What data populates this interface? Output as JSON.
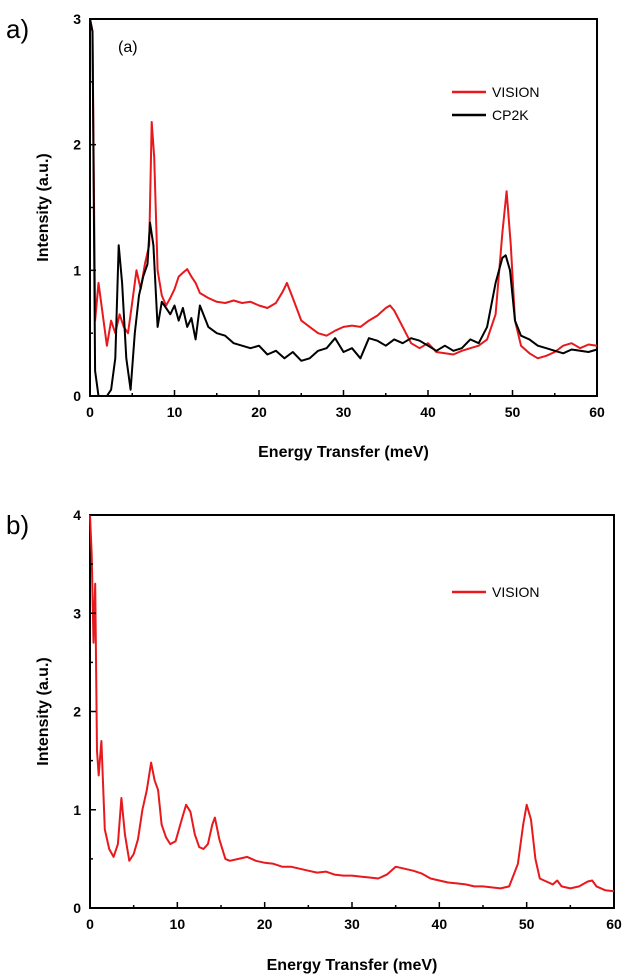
{
  "panels": [
    {
      "letter": "a)",
      "annotation": "(a)"
    },
    {
      "letter": "b)",
      "annotation": ""
    }
  ],
  "chart_data": [
    {
      "type": "line",
      "xlabel": "Energy Transfer (meV)",
      "ylabel": "Intensity (a.u.)",
      "xlim": [
        0,
        60
      ],
      "ylim": [
        0,
        3
      ],
      "xticks": [
        0,
        10,
        20,
        30,
        40,
        50,
        60
      ],
      "yticks": [
        0,
        1,
        2,
        3
      ],
      "grid": false,
      "legend_position": "top-right",
      "series": [
        {
          "name": "VISION",
          "color": "#e8191d",
          "x": [
            0,
            0.3,
            0.6,
            1.0,
            1.5,
            2,
            2.5,
            3,
            3.5,
            4,
            4.5,
            5,
            5.5,
            6,
            6.5,
            7,
            7.3,
            7.6,
            8,
            8.5,
            9,
            9.5,
            10,
            10.5,
            11,
            11.5,
            12,
            12.5,
            13,
            14,
            15,
            16,
            17,
            18,
            19,
            20,
            21,
            22,
            22.8,
            23.3,
            24,
            25,
            26,
            27,
            28,
            29,
            30,
            31,
            32,
            33,
            34,
            35,
            35.5,
            36,
            37,
            38,
            39,
            40,
            41,
            42,
            43,
            44,
            45,
            46,
            47,
            48,
            48.8,
            49.3,
            49.8,
            50.3,
            51,
            52,
            53,
            54,
            55,
            56,
            57,
            58,
            59,
            60
          ],
          "y": [
            3.0,
            2.9,
            0.6,
            0.9,
            0.65,
            0.4,
            0.6,
            0.5,
            0.65,
            0.55,
            0.5,
            0.75,
            1.0,
            0.85,
            1.05,
            1.2,
            2.18,
            1.9,
            1.0,
            0.8,
            0.72,
            0.78,
            0.85,
            0.95,
            0.98,
            1.01,
            0.95,
            0.9,
            0.82,
            0.78,
            0.75,
            0.74,
            0.76,
            0.74,
            0.75,
            0.72,
            0.7,
            0.74,
            0.83,
            0.9,
            0.78,
            0.6,
            0.55,
            0.5,
            0.48,
            0.52,
            0.55,
            0.56,
            0.55,
            0.6,
            0.64,
            0.7,
            0.72,
            0.68,
            0.55,
            0.42,
            0.38,
            0.42,
            0.35,
            0.34,
            0.33,
            0.36,
            0.38,
            0.4,
            0.45,
            0.65,
            1.3,
            1.63,
            1.2,
            0.6,
            0.4,
            0.34,
            0.3,
            0.32,
            0.35,
            0.4,
            0.42,
            0.38,
            0.41,
            0.4
          ]
        },
        {
          "name": "CP2K",
          "color": "#000000",
          "x": [
            0,
            0.3,
            0.6,
            1,
            1.5,
            2,
            2.5,
            3,
            3.4,
            3.8,
            4.3,
            4.8,
            5.3,
            5.8,
            6.3,
            6.8,
            7.1,
            7.5,
            8,
            8.5,
            9,
            9.5,
            10,
            10.5,
            11,
            11.5,
            12,
            12.5,
            13,
            14,
            15,
            16,
            17,
            18,
            19,
            20,
            21,
            22,
            23,
            24,
            25,
            26,
            27,
            28,
            29,
            30,
            31,
            32,
            33,
            34,
            35,
            36,
            37,
            38,
            39,
            40,
            41,
            42,
            43,
            44,
            45,
            46,
            47,
            48,
            48.8,
            49.2,
            49.7,
            50.3,
            51,
            52,
            53,
            54,
            55,
            56,
            57,
            58,
            59,
            60
          ],
          "y": [
            3.0,
            2.9,
            0.2,
            0.0,
            0.0,
            0.0,
            0.05,
            0.3,
            1.2,
            0.9,
            0.3,
            0.05,
            0.5,
            0.8,
            0.95,
            1.05,
            1.38,
            1.2,
            0.55,
            0.75,
            0.7,
            0.65,
            0.72,
            0.6,
            0.7,
            0.55,
            0.62,
            0.45,
            0.72,
            0.55,
            0.5,
            0.48,
            0.42,
            0.4,
            0.38,
            0.4,
            0.33,
            0.36,
            0.3,
            0.35,
            0.28,
            0.3,
            0.36,
            0.38,
            0.46,
            0.35,
            0.38,
            0.3,
            0.46,
            0.44,
            0.4,
            0.45,
            0.42,
            0.46,
            0.44,
            0.4,
            0.36,
            0.4,
            0.36,
            0.38,
            0.45,
            0.42,
            0.55,
            0.9,
            1.1,
            1.12,
            1.0,
            0.6,
            0.48,
            0.45,
            0.4,
            0.38,
            0.36,
            0.34,
            0.37,
            0.36,
            0.35,
            0.37
          ]
        }
      ]
    },
    {
      "type": "line",
      "xlabel": "Energy Transfer (meV)",
      "ylabel": "Intensity (a.u.)",
      "xlim": [
        0,
        60
      ],
      "ylim": [
        0,
        4
      ],
      "xticks": [
        0,
        10,
        20,
        30,
        40,
        50,
        60
      ],
      "yticks": [
        0,
        1,
        2,
        3,
        4
      ],
      "grid": false,
      "legend_position": "top-right",
      "series": [
        {
          "name": "VISION",
          "color": "#e8191d",
          "x": [
            0,
            0.2,
            0.4,
            0.6,
            0.8,
            1.0,
            1.3,
            1.7,
            2.2,
            2.7,
            3.2,
            3.6,
            4.0,
            4.5,
            5,
            5.5,
            6,
            6.5,
            7,
            7.4,
            7.8,
            8.2,
            8.7,
            9.2,
            9.8,
            10.5,
            11,
            11.5,
            12,
            12.5,
            13,
            13.5,
            14,
            14.3,
            14.8,
            15.5,
            16,
            17,
            18,
            19,
            20,
            21,
            22,
            23,
            24,
            25,
            26,
            27,
            28,
            29,
            30,
            31,
            32,
            33,
            34,
            35,
            36,
            37,
            38,
            39,
            40,
            41,
            42,
            43,
            44,
            45,
            46,
            47,
            48,
            49,
            49.6,
            50,
            50.5,
            51,
            51.5,
            52,
            53,
            53.5,
            54,
            55,
            56,
            57,
            57.5,
            58,
            59,
            60
          ],
          "y": [
            4.0,
            3.6,
            2.7,
            3.3,
            1.6,
            1.35,
            1.7,
            0.8,
            0.6,
            0.52,
            0.65,
            1.12,
            0.75,
            0.48,
            0.55,
            0.7,
            1.0,
            1.2,
            1.48,
            1.3,
            1.2,
            0.85,
            0.72,
            0.65,
            0.68,
            0.9,
            1.05,
            0.98,
            0.75,
            0.62,
            0.6,
            0.65,
            0.85,
            0.92,
            0.7,
            0.5,
            0.48,
            0.5,
            0.52,
            0.48,
            0.46,
            0.45,
            0.42,
            0.42,
            0.4,
            0.38,
            0.36,
            0.37,
            0.34,
            0.33,
            0.33,
            0.32,
            0.31,
            0.3,
            0.34,
            0.42,
            0.4,
            0.38,
            0.35,
            0.3,
            0.28,
            0.26,
            0.25,
            0.24,
            0.22,
            0.22,
            0.21,
            0.2,
            0.22,
            0.45,
            0.85,
            1.05,
            0.9,
            0.5,
            0.3,
            0.28,
            0.24,
            0.28,
            0.22,
            0.2,
            0.22,
            0.27,
            0.28,
            0.22,
            0.18,
            0.17
          ]
        }
      ]
    }
  ]
}
